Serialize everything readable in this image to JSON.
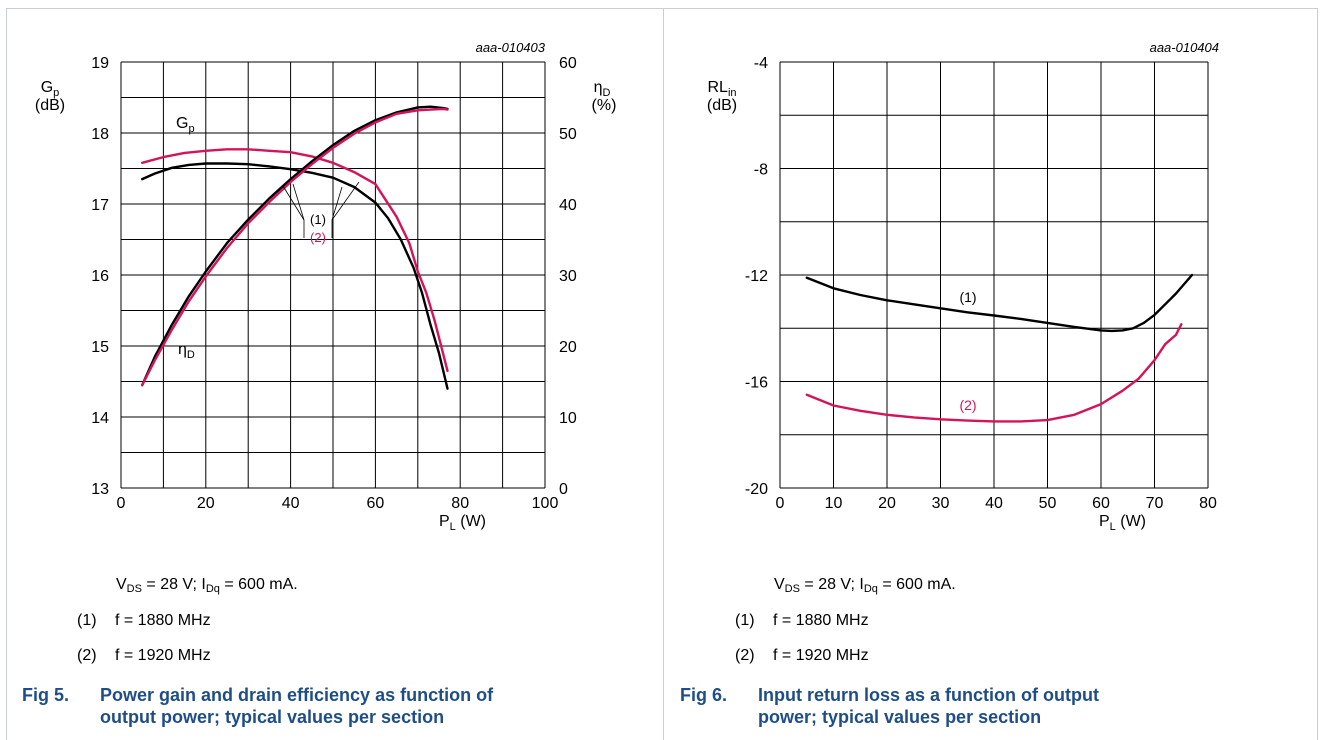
{
  "charts": [
    {
      "figure_id": "aaa-010403",
      "y_left_label": {
        "main": "G",
        "sub": "p",
        "unit": "(dB)"
      },
      "y_right_label": {
        "main": "η",
        "sub": "D",
        "unit": "(%)"
      },
      "x_label": {
        "main": "P",
        "sub": "L",
        "unit": " (W)"
      },
      "curve_label_gp": {
        "main": "G",
        "sub": "p"
      },
      "curve_label_eta": {
        "main": "η",
        "sub": "D"
      },
      "conditions": {
        "vds_sym": "V",
        "vds_sub": "DS",
        "vds_val": " = 28 V; ",
        "idq_sym": "I",
        "idq_sub": "Dq",
        "idq_val": " = 600 mA."
      },
      "notes": [
        {
          "num": "(1)",
          "text": "f = 1880 MHz"
        },
        {
          "num": "(2)",
          "text": "f = 1920 MHz"
        }
      ],
      "caption": {
        "fig": "Fig 5.",
        "line1": "Power gain and drain efficiency as function of",
        "line2": "output power; typical values per section"
      }
    },
    {
      "figure_id": "aaa-010404",
      "y_left_label": {
        "main": "RL",
        "sub": "in",
        "unit": "(dB)"
      },
      "x_label": {
        "main": "P",
        "sub": "L",
        "unit": " (W)"
      },
      "conditions": {
        "vds_sym": "V",
        "vds_sub": "DS",
        "vds_val": " = 28 V; ",
        "idq_sym": "I",
        "idq_sub": "Dq",
        "idq_val": " = 600 mA."
      },
      "notes": [
        {
          "num": "(1)",
          "text": "f = 1880 MHz"
        },
        {
          "num": "(2)",
          "text": "f = 1920 MHz"
        }
      ],
      "caption": {
        "fig": "Fig 6.",
        "line1": "Input return loss as a function of output",
        "line2": "power; typical values per section"
      }
    }
  ],
  "colors": {
    "series1": "#000000",
    "series2": "#d4145a",
    "grid": "#000000",
    "caption": "#1f4e86"
  },
  "chart_data": [
    {
      "type": "line",
      "xlim": [
        0,
        100
      ],
      "x_ticks": [
        "0",
        "20",
        "40",
        "60",
        "80",
        "100"
      ],
      "ylim_left": [
        13,
        19
      ],
      "y_ticks_left": [
        "13",
        "14",
        "15",
        "16",
        "17",
        "18",
        "19"
      ],
      "ylim_right": [
        0,
        60
      ],
      "y_ticks_right": [
        "0",
        "10",
        "20",
        "30",
        "40",
        "50",
        "60"
      ],
      "grid": true,
      "series": [
        {
          "name": "(1)",
          "axis": "left",
          "color": "#000000",
          "x": [
            5,
            8,
            12,
            16,
            20,
            25,
            30,
            35,
            40,
            45,
            50,
            55,
            60,
            63,
            66,
            69,
            71,
            73,
            75,
            77
          ],
          "y": [
            17.35,
            17.43,
            17.51,
            17.55,
            17.57,
            17.57,
            17.56,
            17.53,
            17.49,
            17.44,
            17.37,
            17.24,
            17.02,
            16.8,
            16.5,
            16.1,
            15.75,
            15.3,
            14.9,
            14.4
          ]
        },
        {
          "name": "(2)",
          "axis": "left",
          "color": "#d4145a",
          "x": [
            5,
            10,
            15,
            20,
            25,
            30,
            35,
            40,
            45,
            50,
            55,
            60,
            65,
            68,
            70,
            72,
            74,
            77
          ],
          "y": [
            17.58,
            17.66,
            17.72,
            17.75,
            17.77,
            17.77,
            17.75,
            17.73,
            17.67,
            17.58,
            17.45,
            17.28,
            16.82,
            16.45,
            16.05,
            15.75,
            15.35,
            14.65
          ]
        },
        {
          "name": "(1)",
          "axis": "right",
          "color": "#000000",
          "x": [
            5,
            8,
            12,
            16,
            20,
            25,
            30,
            35,
            40,
            45,
            50,
            55,
            60,
            65,
            70,
            73,
            76,
            77
          ],
          "y": [
            14.5,
            18.5,
            23,
            27,
            30.5,
            34.5,
            37.8,
            40.8,
            43.5,
            46.0,
            48.3,
            50.3,
            51.8,
            52.9,
            53.6,
            53.7,
            53.5,
            53.4
          ]
        },
        {
          "name": "(2)",
          "axis": "right",
          "color": "#d4145a",
          "x": [
            5,
            8,
            12,
            16,
            20,
            25,
            30,
            35,
            40,
            45,
            50,
            55,
            60,
            65,
            70,
            73,
            76,
            77
          ],
          "y": [
            14.5,
            18.0,
            22.3,
            26.3,
            29.8,
            33.8,
            37.3,
            40.3,
            43.1,
            45.6,
            47.9,
            49.9,
            51.5,
            52.7,
            53.2,
            53.3,
            53.4,
            53.3
          ]
        }
      ],
      "annotations": [
        {
          "text": "(1)"
        },
        {
          "text": "(2)"
        }
      ]
    },
    {
      "type": "line",
      "xlim": [
        0,
        80
      ],
      "x_ticks": [
        "0",
        "10",
        "20",
        "30",
        "40",
        "50",
        "60",
        "70",
        "80"
      ],
      "ylim": [
        -20,
        -4
      ],
      "y_ticks": [
        "-20",
        "-16",
        "-12",
        "-8",
        "-4"
      ],
      "grid": true,
      "series": [
        {
          "name": "(1)",
          "color": "#000000",
          "x": [
            5,
            10,
            15,
            20,
            25,
            30,
            35,
            40,
            45,
            50,
            55,
            60,
            62,
            64,
            66,
            68,
            70,
            72,
            74,
            77
          ],
          "y": [
            -12.1,
            -12.5,
            -12.75,
            -12.95,
            -13.1,
            -13.25,
            -13.4,
            -13.52,
            -13.65,
            -13.8,
            -13.95,
            -14.08,
            -14.1,
            -14.08,
            -14.0,
            -13.8,
            -13.5,
            -13.1,
            -12.7,
            -12.0
          ]
        },
        {
          "name": "(2)",
          "color": "#d4145a",
          "x": [
            5,
            10,
            15,
            20,
            25,
            30,
            35,
            40,
            45,
            50,
            55,
            60,
            64,
            67,
            70,
            72,
            74,
            75
          ],
          "y": [
            -16.5,
            -16.9,
            -17.1,
            -17.25,
            -17.35,
            -17.42,
            -17.47,
            -17.5,
            -17.5,
            -17.45,
            -17.25,
            -16.85,
            -16.35,
            -15.9,
            -15.2,
            -14.6,
            -14.25,
            -13.85
          ]
        }
      ],
      "annotations": [
        {
          "text": "(1)"
        },
        {
          "text": "(2)"
        }
      ]
    }
  ]
}
